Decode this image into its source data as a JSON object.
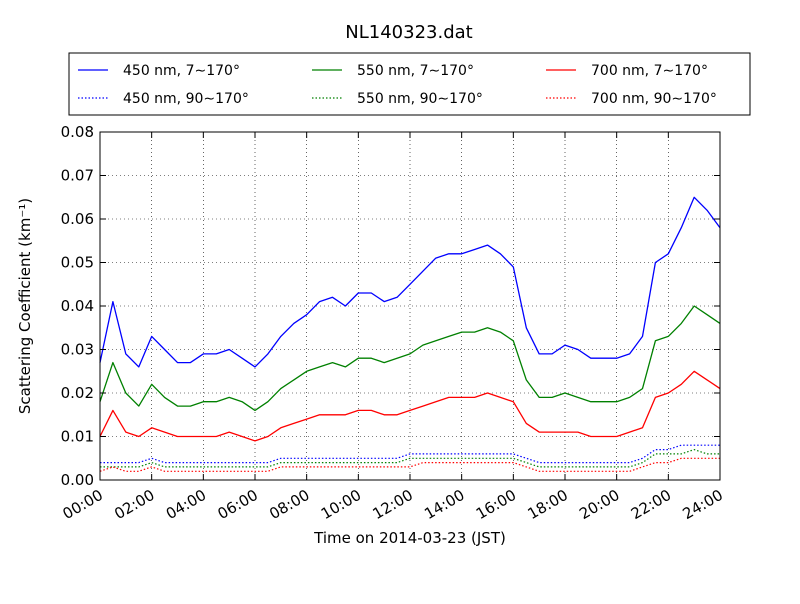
{
  "chart_data": {
    "type": "line",
    "title": "NL140323.dat",
    "xlabel": "Time on 2014-03-23 (JST)",
    "ylabel": "Scattering Coefficient (km⁻¹)",
    "xlim": [
      "00:00",
      "24:00"
    ],
    "ylim": [
      0,
      0.08
    ],
    "grid": true,
    "legend_position": "top-outside",
    "x_ticks": [
      "00:00",
      "02:00",
      "04:00",
      "06:00",
      "08:00",
      "10:00",
      "12:00",
      "14:00",
      "16:00",
      "18:00",
      "20:00",
      "22:00",
      "24:00"
    ],
    "y_ticks": [
      "0.00",
      "0.01",
      "0.02",
      "0.03",
      "0.04",
      "0.05",
      "0.06",
      "0.07",
      "0.08"
    ],
    "x": [
      "00:00",
      "00:30",
      "01:00",
      "01:30",
      "02:00",
      "02:30",
      "03:00",
      "03:30",
      "04:00",
      "04:30",
      "05:00",
      "05:30",
      "06:00",
      "06:30",
      "07:00",
      "07:30",
      "08:00",
      "08:30",
      "09:00",
      "09:30",
      "10:00",
      "10:30",
      "11:00",
      "11:30",
      "12:00",
      "12:30",
      "13:00",
      "13:30",
      "14:00",
      "14:30",
      "15:00",
      "15:30",
      "16:00",
      "16:30",
      "17:00",
      "17:30",
      "18:00",
      "18:30",
      "19:00",
      "19:30",
      "20:00",
      "20:30",
      "21:00",
      "21:30",
      "22:00",
      "22:30",
      "23:00",
      "23:30",
      "24:00"
    ],
    "series": [
      {
        "name": "450 nm, 7∼170°",
        "color": "#0000ff",
        "style": "solid",
        "values": [
          0.027,
          0.041,
          0.029,
          0.026,
          0.033,
          0.03,
          0.027,
          0.027,
          0.029,
          0.029,
          0.03,
          0.028,
          0.026,
          0.029,
          0.033,
          0.036,
          0.038,
          0.041,
          0.042,
          0.04,
          0.043,
          0.043,
          0.041,
          0.042,
          0.045,
          0.048,
          0.051,
          0.052,
          0.052,
          0.053,
          0.054,
          0.052,
          0.049,
          0.035,
          0.029,
          0.029,
          0.031,
          0.03,
          0.028,
          0.028,
          0.028,
          0.029,
          0.033,
          0.05,
          0.052,
          0.058,
          0.065,
          0.062,
          0.058
        ]
      },
      {
        "name": "550 nm, 7∼170°",
        "color": "#008000",
        "style": "solid",
        "values": [
          0.018,
          0.027,
          0.02,
          0.017,
          0.022,
          0.019,
          0.017,
          0.017,
          0.018,
          0.018,
          0.019,
          0.018,
          0.016,
          0.018,
          0.021,
          0.023,
          0.025,
          0.026,
          0.027,
          0.026,
          0.028,
          0.028,
          0.027,
          0.028,
          0.029,
          0.031,
          0.032,
          0.033,
          0.034,
          0.034,
          0.035,
          0.034,
          0.032,
          0.023,
          0.019,
          0.019,
          0.02,
          0.019,
          0.018,
          0.018,
          0.018,
          0.019,
          0.021,
          0.032,
          0.033,
          0.036,
          0.04,
          0.038,
          0.036
        ]
      },
      {
        "name": "700 nm, 7∼170°",
        "color": "#ff0000",
        "style": "solid",
        "values": [
          0.01,
          0.016,
          0.011,
          0.01,
          0.012,
          0.011,
          0.01,
          0.01,
          0.01,
          0.01,
          0.011,
          0.01,
          0.009,
          0.01,
          0.012,
          0.013,
          0.014,
          0.015,
          0.015,
          0.015,
          0.016,
          0.016,
          0.015,
          0.015,
          0.016,
          0.017,
          0.018,
          0.019,
          0.019,
          0.019,
          0.02,
          0.019,
          0.018,
          0.013,
          0.011,
          0.011,
          0.011,
          0.011,
          0.01,
          0.01,
          0.01,
          0.011,
          0.012,
          0.019,
          0.02,
          0.022,
          0.025,
          0.023,
          0.021
        ]
      },
      {
        "name": "450 nm, 90∼170°",
        "color": "#0000ff",
        "style": "dotted",
        "values": [
          0.004,
          0.004,
          0.004,
          0.004,
          0.005,
          0.004,
          0.004,
          0.004,
          0.004,
          0.004,
          0.004,
          0.004,
          0.004,
          0.004,
          0.005,
          0.005,
          0.005,
          0.005,
          0.005,
          0.005,
          0.005,
          0.005,
          0.005,
          0.005,
          0.006,
          0.006,
          0.006,
          0.006,
          0.006,
          0.006,
          0.006,
          0.006,
          0.006,
          0.005,
          0.004,
          0.004,
          0.004,
          0.004,
          0.004,
          0.004,
          0.004,
          0.004,
          0.005,
          0.007,
          0.007,
          0.008,
          0.008,
          0.008,
          0.008
        ]
      },
      {
        "name": "550 nm, 90∼170°",
        "color": "#008000",
        "style": "dotted",
        "values": [
          0.003,
          0.003,
          0.003,
          0.003,
          0.004,
          0.003,
          0.003,
          0.003,
          0.003,
          0.003,
          0.003,
          0.003,
          0.003,
          0.003,
          0.004,
          0.004,
          0.004,
          0.004,
          0.004,
          0.004,
          0.004,
          0.004,
          0.004,
          0.004,
          0.005,
          0.005,
          0.005,
          0.005,
          0.005,
          0.005,
          0.005,
          0.005,
          0.005,
          0.004,
          0.003,
          0.003,
          0.003,
          0.003,
          0.003,
          0.003,
          0.003,
          0.003,
          0.004,
          0.006,
          0.006,
          0.006,
          0.007,
          0.006,
          0.006
        ]
      },
      {
        "name": "700 nm, 90∼170°",
        "color": "#ff0000",
        "style": "dotted",
        "values": [
          0.002,
          0.003,
          0.002,
          0.002,
          0.003,
          0.002,
          0.002,
          0.002,
          0.002,
          0.002,
          0.002,
          0.002,
          0.002,
          0.002,
          0.003,
          0.003,
          0.003,
          0.003,
          0.003,
          0.003,
          0.003,
          0.003,
          0.003,
          0.003,
          0.003,
          0.004,
          0.004,
          0.004,
          0.004,
          0.004,
          0.004,
          0.004,
          0.004,
          0.003,
          0.002,
          0.002,
          0.002,
          0.002,
          0.002,
          0.002,
          0.002,
          0.002,
          0.003,
          0.004,
          0.004,
          0.005,
          0.005,
          0.005,
          0.005
        ]
      }
    ],
    "legend_order": [
      0,
      1,
      2,
      3,
      4,
      5
    ]
  }
}
